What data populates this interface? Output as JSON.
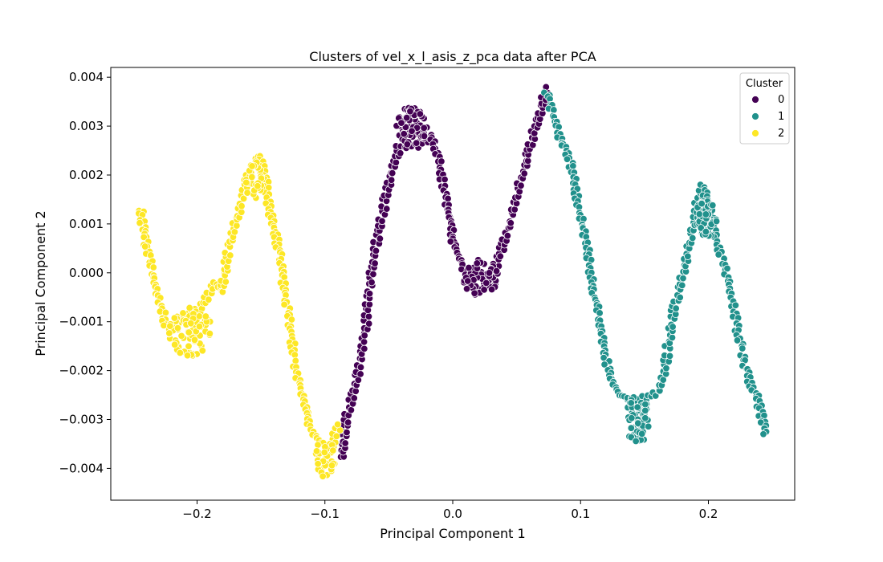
{
  "chart_data": {
    "type": "scatter",
    "title": "Clusters of vel_x_l_asis_z_pca data after PCA",
    "xlabel": "Principal Component 1",
    "ylabel": "Principal Component 2",
    "xlim": [
      -0.2675,
      0.2675
    ],
    "ylim": [
      -0.00465,
      0.0042
    ],
    "xticks": [
      -0.2,
      -0.1,
      0.0,
      0.1,
      0.2
    ],
    "xtick_labels": [
      "−0.2",
      "−0.1",
      "0.0",
      "0.1",
      "0.2"
    ],
    "yticks": [
      0.004,
      0.003,
      0.002,
      0.001,
      0.0,
      -0.001,
      -0.002,
      -0.003,
      -0.004
    ],
    "ytick_labels": [
      "0.004",
      "0.003",
      "0.002",
      "0.001",
      "0.000",
      "−0.001",
      "−0.002",
      "−0.003",
      "−0.004"
    ],
    "grid": false,
    "legend": {
      "title": "Cluster",
      "placement": "top-right"
    },
    "series": [
      {
        "name": "0",
        "color": "#440154",
        "path": [
          [
            -0.088,
            -0.00375
          ],
          [
            -0.085,
            -0.003
          ],
          [
            -0.08,
            -0.0025
          ],
          [
            -0.075,
            -0.002
          ],
          [
            -0.072,
            -0.0015
          ],
          [
            -0.069,
            -0.001
          ],
          [
            -0.067,
            -0.0005
          ],
          [
            -0.065,
            0.0
          ],
          [
            -0.062,
            0.0005
          ],
          [
            -0.058,
            0.001
          ],
          [
            -0.053,
            0.0016
          ],
          [
            -0.048,
            0.0022
          ],
          [
            -0.043,
            0.0026
          ],
          [
            -0.03,
            0.0026
          ],
          [
            -0.018,
            0.0028
          ],
          [
            -0.012,
            0.0023
          ],
          [
            -0.008,
            0.0018
          ],
          [
            -0.005,
            0.0013
          ],
          [
            -0.002,
            0.0009
          ],
          [
            0.0,
            0.0005
          ],
          [
            0.01,
            0.0
          ],
          [
            0.03,
            0.0
          ],
          [
            0.04,
            0.0007
          ],
          [
            0.045,
            0.0012
          ],
          [
            0.05,
            0.0017
          ],
          [
            0.055,
            0.0022
          ],
          [
            0.062,
            0.0029
          ],
          [
            0.068,
            0.0034
          ],
          [
            0.073,
            0.0038
          ]
        ],
        "clusters": [
          {
            "center": [
              -0.032,
              0.003
            ],
            "spread": [
              0.012,
              0.0004
            ],
            "count": 70
          },
          {
            "center": [
              0.022,
              -0.0001
            ],
            "spread": [
              0.014,
              0.0004
            ],
            "count": 55
          }
        ]
      },
      {
        "name": "1",
        "color": "#21918c",
        "path": [
          [
            0.073,
            0.0037
          ],
          [
            0.08,
            0.003
          ],
          [
            0.088,
            0.0025
          ],
          [
            0.092,
            0.0022
          ],
          [
            0.096,
            0.0015
          ],
          [
            0.1,
            0.001
          ],
          [
            0.105,
            0.0004
          ],
          [
            0.108,
            -0.0002
          ],
          [
            0.112,
            -0.0008
          ],
          [
            0.116,
            -0.0014
          ],
          [
            0.12,
            -0.0019
          ],
          [
            0.125,
            -0.0023
          ],
          [
            0.13,
            -0.0025
          ],
          [
            0.145,
            -0.0026
          ],
          [
            0.16,
            -0.0024
          ],
          [
            0.165,
            -0.0019
          ],
          [
            0.168,
            -0.0014
          ],
          [
            0.172,
            -0.0008
          ],
          [
            0.177,
            -0.0002
          ],
          [
            0.182,
            0.0004
          ],
          [
            0.186,
            0.0009
          ],
          [
            0.19,
            0.0014
          ],
          [
            0.195,
            0.0018
          ],
          [
            0.205,
            0.0007
          ],
          [
            0.212,
            0.0001
          ],
          [
            0.216,
            -0.0004
          ],
          [
            0.22,
            -0.0009
          ],
          [
            0.224,
            -0.0014
          ],
          [
            0.228,
            -0.0019
          ],
          [
            0.233,
            -0.0023
          ],
          [
            0.238,
            -0.0026
          ],
          [
            0.241,
            -0.003
          ],
          [
            0.243,
            -0.0033
          ]
        ],
        "clusters": [
          {
            "center": [
              0.145,
              -0.003
            ],
            "spread": [
              0.01,
              0.0005
            ],
            "count": 60
          },
          {
            "center": [
              0.198,
              0.0011
            ],
            "spread": [
              0.009,
              0.0004
            ],
            "count": 55
          }
        ]
      },
      {
        "name": "2",
        "color": "#fde725",
        "path": [
          [
            -0.245,
            0.0013
          ],
          [
            -0.243,
            0.0009
          ],
          [
            -0.24,
            0.0005
          ],
          [
            -0.236,
            0.0
          ],
          [
            -0.233,
            -0.0004
          ],
          [
            -0.229,
            -0.0007
          ],
          [
            -0.225,
            -0.0011
          ],
          [
            -0.195,
            -0.0006
          ],
          [
            -0.188,
            -0.0002
          ],
          [
            -0.182,
            -0.00035
          ],
          [
            -0.178,
            0.0003
          ],
          [
            -0.174,
            0.0008
          ],
          [
            -0.168,
            0.0013
          ],
          [
            -0.163,
            0.0018
          ],
          [
            -0.158,
            0.0022
          ],
          [
            -0.153,
            0.0024
          ],
          [
            -0.148,
            0.002
          ],
          [
            -0.145,
            0.0014
          ],
          [
            -0.142,
            0.001
          ],
          [
            -0.138,
            0.0006
          ],
          [
            -0.135,
            0.0002
          ],
          [
            -0.133,
            -0.0003
          ],
          [
            -0.13,
            -0.0008
          ],
          [
            -0.127,
            -0.0013
          ],
          [
            -0.124,
            -0.0019
          ],
          [
            -0.12,
            -0.0024
          ],
          [
            -0.116,
            -0.0028
          ],
          [
            -0.112,
            -0.0032
          ],
          [
            -0.098,
            -0.0036
          ],
          [
            -0.09,
            -0.0031
          ]
        ],
        "clusters": [
          {
            "center": [
              -0.205,
              -0.0012
            ],
            "spread": [
              0.017,
              0.0005
            ],
            "count": 75
          },
          {
            "center": [
              -0.156,
              0.0019
            ],
            "spread": [
              0.007,
              0.0004
            ],
            "count": 30
          },
          {
            "center": [
              -0.1,
              -0.0038
            ],
            "spread": [
              0.008,
              0.0004
            ],
            "count": 40
          }
        ]
      }
    ]
  }
}
